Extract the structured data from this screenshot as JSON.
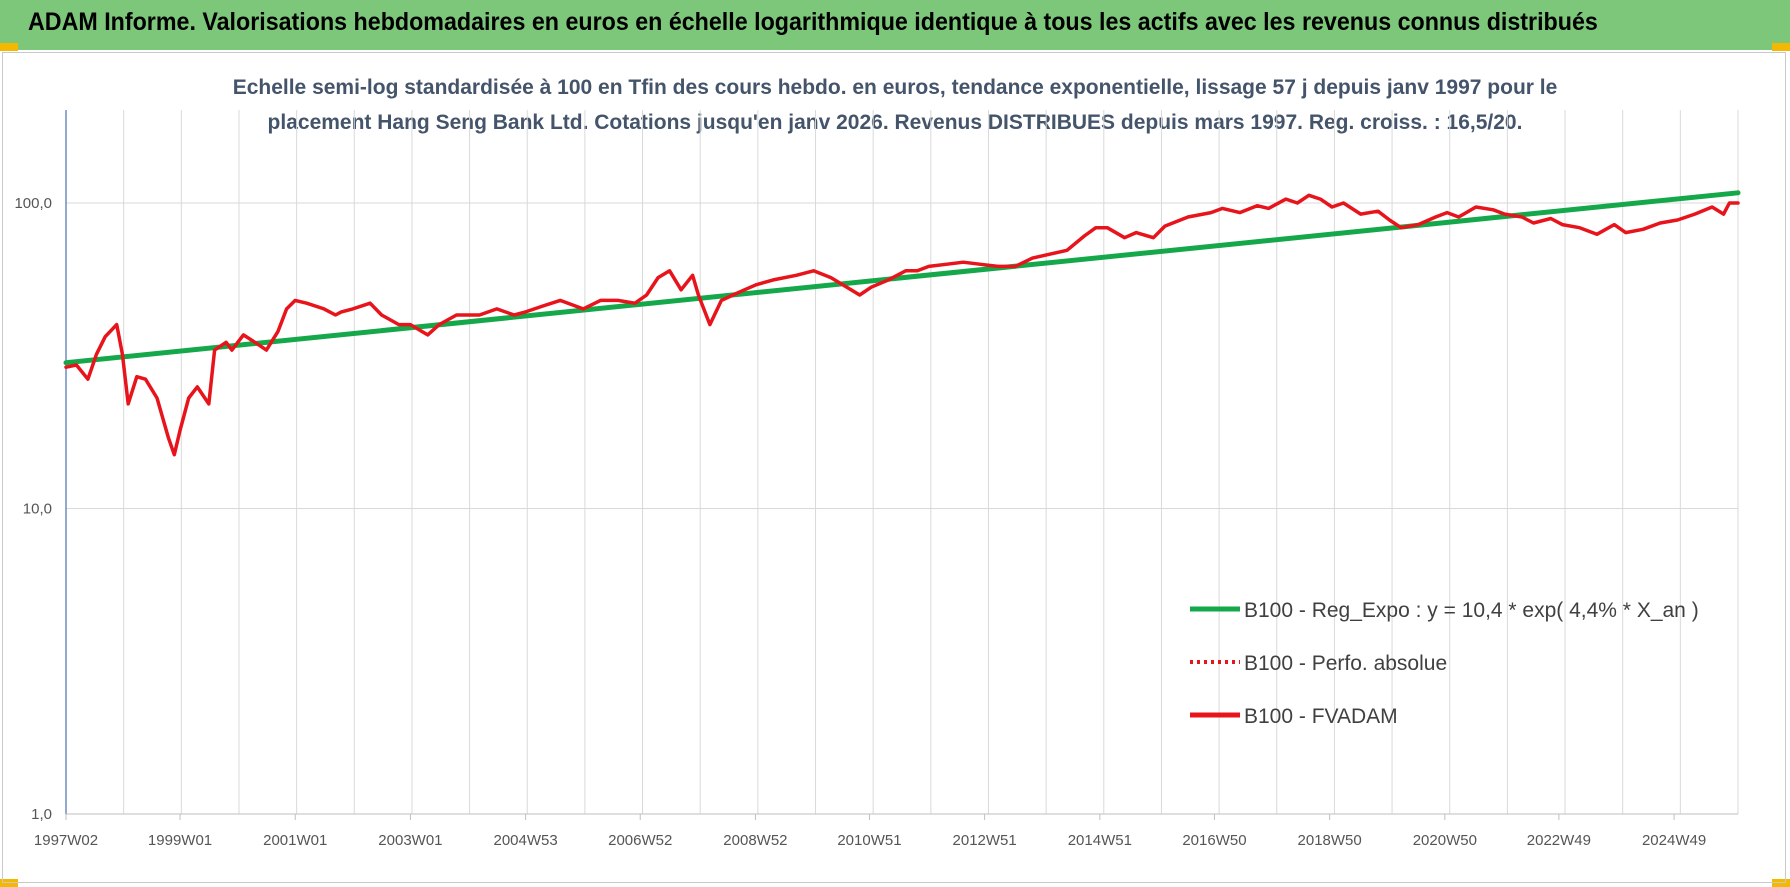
{
  "header": {
    "title": "ADAM Informe. Valorisations hebdomadaires en euros en échelle logarithmique identique à tous les actifs avec les revenus connus distribués"
  },
  "colors": {
    "banner": "#7dc77a",
    "corner": "#f5b800",
    "fvadam": "#e8141b",
    "regression": "#15a84a",
    "perfo": "#e8141b",
    "grid": "#d9d9d9",
    "title_text": "#44546a"
  },
  "chart_data": {
    "type": "line",
    "title_line1": "Echelle semi-log standardisée à 100 en Tfin des cours hebdo. en euros, tendance exponentielle, lissage 57 j depuis janv 1997 pour le",
    "title_line2": "placement Hang Seng Bank Ltd. Cotations jusqu'en janv 2026.  Revenus DISTRIBUES depuis mars 1997. Reg. croiss. : 16,5/20.",
    "y_scale": "log",
    "ylim": [
      1,
      180
    ],
    "yticks": [
      {
        "value": 1,
        "label": "1,0"
      },
      {
        "value": 10,
        "label": "10,0"
      },
      {
        "value": 100,
        "label": "100,0"
      }
    ],
    "xlim": [
      1997.02,
      2026.05
    ],
    "xticks": [
      {
        "value": 1997.02,
        "label": "1997W02"
      },
      {
        "value": 1999.0,
        "label": "1999W01"
      },
      {
        "value": 2001.0,
        "label": "2001W01"
      },
      {
        "value": 2003.0,
        "label": "2003W01"
      },
      {
        "value": 2005.0,
        "label": "2004W53"
      },
      {
        "value": 2006.99,
        "label": "2006W52"
      },
      {
        "value": 2008.99,
        "label": "2008W52"
      },
      {
        "value": 2010.97,
        "label": "2010W51"
      },
      {
        "value": 2012.97,
        "label": "2012W51"
      },
      {
        "value": 2014.97,
        "label": "2014W51"
      },
      {
        "value": 2016.96,
        "label": "2016W50"
      },
      {
        "value": 2018.96,
        "label": "2018W50"
      },
      {
        "value": 2020.96,
        "label": "2020W50"
      },
      {
        "value": 2022.94,
        "label": "2022W49"
      },
      {
        "value": 2024.94,
        "label": "2024W49"
      }
    ],
    "grid": true,
    "legend_position": "bottom-right",
    "series": [
      {
        "name": "B100 - Reg_Expo : y = 10,4 * exp( 4,4% *  X_an )",
        "style": "solid-green",
        "x": [
          1997.02,
          2026.05
        ],
        "y": [
          30.0,
          108.0
        ]
      },
      {
        "name": "B100 - Perfo. absolue",
        "style": "dotted-red",
        "x": [],
        "y": []
      },
      {
        "name": "B100 - FVADAM",
        "style": "solid-red",
        "x": [
          1997.02,
          1997.2,
          1997.4,
          1997.55,
          1997.7,
          1997.9,
          1998.0,
          1998.1,
          1998.25,
          1998.4,
          1998.6,
          1998.8,
          1998.9,
          1999.0,
          1999.15,
          1999.3,
          1999.5,
          1999.6,
          1999.8,
          1999.9,
          2000.1,
          2000.3,
          2000.5,
          2000.7,
          2000.85,
          2001.0,
          2001.2,
          2001.5,
          2001.7,
          2001.8,
          2002.0,
          2002.3,
          2002.5,
          2002.8,
          2003.0,
          2003.3,
          2003.5,
          2003.8,
          2004.2,
          2004.5,
          2004.8,
          2005.0,
          2005.3,
          2005.6,
          2006.0,
          2006.3,
          2006.6,
          2006.9,
          2007.1,
          2007.3,
          2007.5,
          2007.7,
          2007.9,
          2008.0,
          2008.2,
          2008.4,
          2008.6,
          2008.8,
          2009.0,
          2009.3,
          2009.7,
          2010.0,
          2010.3,
          2010.8,
          2011.0,
          2011.3,
          2011.6,
          2011.8,
          2012.0,
          2012.3,
          2012.6,
          2012.9,
          2013.2,
          2013.5,
          2013.8,
          2014.1,
          2014.4,
          2014.7,
          2014.9,
          2015.1,
          2015.4,
          2015.6,
          2015.9,
          2016.1,
          2016.5,
          2016.9,
          2017.1,
          2017.4,
          2017.7,
          2017.9,
          2018.2,
          2018.4,
          2018.6,
          2018.8,
          2019.0,
          2019.2,
          2019.5,
          2019.8,
          2020.0,
          2020.2,
          2020.5,
          2020.8,
          2021.0,
          2021.2,
          2021.5,
          2021.8,
          2022.0,
          2022.3,
          2022.5,
          2022.8,
          2023.0,
          2023.3,
          2023.6,
          2023.9,
          2024.1,
          2024.4,
          2024.7,
          2025.0,
          2025.3,
          2025.6,
          2025.8,
          2025.9,
          2026.05
        ],
        "y": [
          29,
          29.5,
          26.5,
          32,
          36.5,
          40,
          32,
          22,
          27,
          26.5,
          23,
          17,
          15,
          18,
          23,
          25,
          22,
          33,
          35,
          33,
          37,
          35,
          33,
          38,
          45,
          48,
          47,
          45,
          43,
          44,
          45,
          47,
          43,
          40,
          40,
          37,
          40,
          43,
          43,
          45,
          43,
          44,
          46,
          48,
          45,
          48,
          48,
          47,
          50,
          57,
          60,
          52,
          58,
          50,
          40,
          48,
          50,
          52,
          54,
          56,
          58,
          60,
          57,
          50,
          53,
          56,
          60,
          60,
          62,
          63,
          64,
          63,
          62,
          62,
          66,
          68,
          70,
          78,
          83,
          83,
          77,
          80,
          77,
          84,
          90,
          93,
          96,
          93,
          98,
          96,
          103,
          100,
          106,
          103,
          97,
          100,
          92,
          94,
          88,
          83,
          85,
          90,
          93,
          90,
          97,
          95,
          92,
          90,
          86,
          89,
          85,
          83,
          79,
          85,
          80,
          82,
          86,
          88,
          92,
          97,
          92,
          100,
          100
        ]
      }
    ]
  }
}
